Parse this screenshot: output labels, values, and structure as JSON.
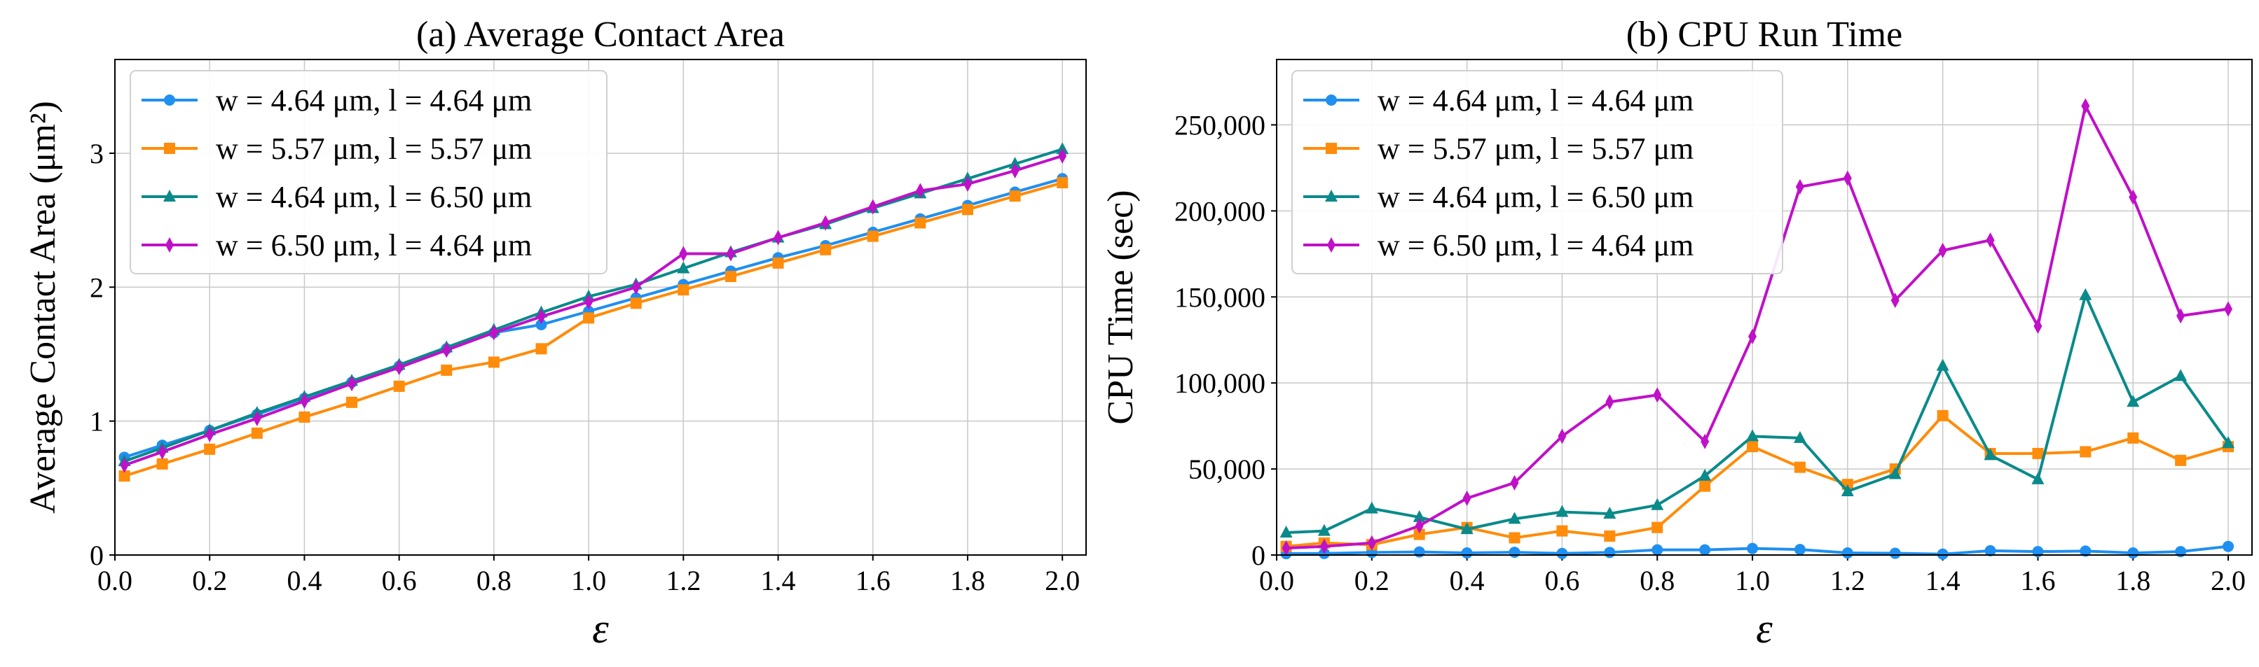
{
  "chart_data": [
    {
      "type": "line",
      "title": "(a) Average Contact Area",
      "xlabel": "ε",
      "ylabel": "Average Contact Area (μm²)",
      "xlim": [
        0,
        2.05
      ],
      "ylim": [
        0,
        3.7
      ],
      "xticks": [
        0,
        0.2,
        0.4,
        0.6,
        0.8,
        1.0,
        1.2,
        1.4,
        1.6,
        1.8,
        2.0
      ],
      "xtick_labels": [
        "0.0",
        "0.2",
        "0.4",
        "0.6",
        "0.8",
        "1.0",
        "1.2",
        "1.4",
        "1.6",
        "1.8",
        "2.0"
      ],
      "yticks": [
        0,
        1,
        2,
        3
      ],
      "ytick_labels": [
        "0",
        "1",
        "2",
        "3"
      ],
      "grid": true,
      "legend_position": "top-left",
      "x": [
        0.02,
        0.1,
        0.2,
        0.3,
        0.4,
        0.5,
        0.6,
        0.7,
        0.8,
        0.9,
        1.0,
        1.1,
        1.2,
        1.3,
        1.4,
        1.5,
        1.6,
        1.7,
        1.8,
        1.9,
        2.0
      ],
      "series": [
        {
          "name": "w = 4.64 μm, l = 4.64 μm",
          "color": "#1f8ff0",
          "marker": "circle",
          "values": [
            0.73,
            0.82,
            0.93,
            1.05,
            1.17,
            1.29,
            1.41,
            1.54,
            1.66,
            1.72,
            1.82,
            1.92,
            2.02,
            2.12,
            2.22,
            2.31,
            2.41,
            2.51,
            2.61,
            2.71,
            2.81
          ]
        },
        {
          "name": "w = 5.57 μm, l = 5.57 μm",
          "color": "#ff8c0a",
          "marker": "square",
          "values": [
            0.59,
            0.68,
            0.79,
            0.91,
            1.03,
            1.14,
            1.26,
            1.38,
            1.44,
            1.54,
            1.77,
            1.88,
            1.98,
            2.08,
            2.18,
            2.28,
            2.38,
            2.48,
            2.58,
            2.68,
            2.78
          ]
        },
        {
          "name": "w = 4.64 μm, l = 6.50 μm",
          "color": "#0a8a8a",
          "marker": "triangle",
          "values": [
            0.7,
            0.8,
            0.93,
            1.06,
            1.18,
            1.3,
            1.42,
            1.55,
            1.68,
            1.81,
            1.93,
            2.02,
            2.14,
            2.26,
            2.37,
            2.47,
            2.59,
            2.7,
            2.81,
            2.92,
            3.03
          ]
        },
        {
          "name": "w = 6.50 μm, l = 4.64 μm",
          "color": "#c010c8",
          "marker": "diamond",
          "values": [
            0.67,
            0.77,
            0.9,
            1.02,
            1.15,
            1.28,
            1.4,
            1.53,
            1.66,
            1.78,
            1.89,
            2.0,
            2.25,
            2.25,
            2.37,
            2.48,
            2.6,
            2.72,
            2.77,
            2.87,
            2.98
          ]
        }
      ]
    },
    {
      "type": "line",
      "title": "(b) CPU Run Time",
      "xlabel": "ε",
      "ylabel": "CPU Time (sec)",
      "xlim": [
        0,
        2.05
      ],
      "ylim": [
        0,
        288000
      ],
      "xticks": [
        0,
        0.2,
        0.4,
        0.6,
        0.8,
        1.0,
        1.2,
        1.4,
        1.6,
        1.8,
        2.0
      ],
      "xtick_labels": [
        "0.0",
        "0.2",
        "0.4",
        "0.6",
        "0.8",
        "1.0",
        "1.2",
        "1.4",
        "1.6",
        "1.8",
        "2.0"
      ],
      "yticks": [
        0,
        50000,
        100000,
        150000,
        200000,
        250000
      ],
      "ytick_labels": [
        "0",
        "50,000",
        "100,000",
        "150,000",
        "200,000",
        "250,000"
      ],
      "grid": true,
      "legend_position": "top-left",
      "x": [
        0.02,
        0.1,
        0.2,
        0.3,
        0.4,
        0.5,
        0.6,
        0.7,
        0.8,
        0.9,
        1.0,
        1.1,
        1.2,
        1.3,
        1.4,
        1.5,
        1.6,
        1.7,
        1.8,
        1.9,
        2.0
      ],
      "series": [
        {
          "name": "w = 4.64 μm, l = 4.64 μm",
          "color": "#1f8ff0",
          "marker": "circle",
          "values": [
            800,
            900,
            1500,
            1800,
            1200,
            1600,
            900,
            1500,
            3000,
            3000,
            3800,
            3200,
            1200,
            1000,
            500,
            2500,
            2000,
            2300,
            1200,
            2000,
            5000
          ]
        },
        {
          "name": "w = 5.57 μm, l = 5.57 μm",
          "color": "#ff8c0a",
          "marker": "square",
          "values": [
            5000,
            7000,
            6000,
            12000,
            16000,
            10000,
            14000,
            11000,
            16000,
            40000,
            63000,
            51000,
            41000,
            50000,
            81000,
            59000,
            59000,
            60000,
            68000,
            55000,
            63000
          ]
        },
        {
          "name": "w = 4.64 μm, l = 6.50 μm",
          "color": "#0a8a8a",
          "marker": "triangle",
          "values": [
            13000,
            14000,
            27000,
            22000,
            15000,
            21000,
            25000,
            24000,
            29000,
            46000,
            69000,
            68000,
            37000,
            47000,
            110000,
            58000,
            44000,
            151000,
            89000,
            104000,
            65000
          ]
        },
        {
          "name": "w = 6.50 μm, l = 4.64 μm",
          "color": "#c010c8",
          "marker": "diamond",
          "values": [
            4000,
            5000,
            7000,
            17000,
            33000,
            42000,
            69000,
            89000,
            93000,
            66000,
            127000,
            214000,
            219000,
            148000,
            177000,
            183000,
            133000,
            261000,
            208000,
            139000,
            143000
          ]
        }
      ]
    }
  ]
}
